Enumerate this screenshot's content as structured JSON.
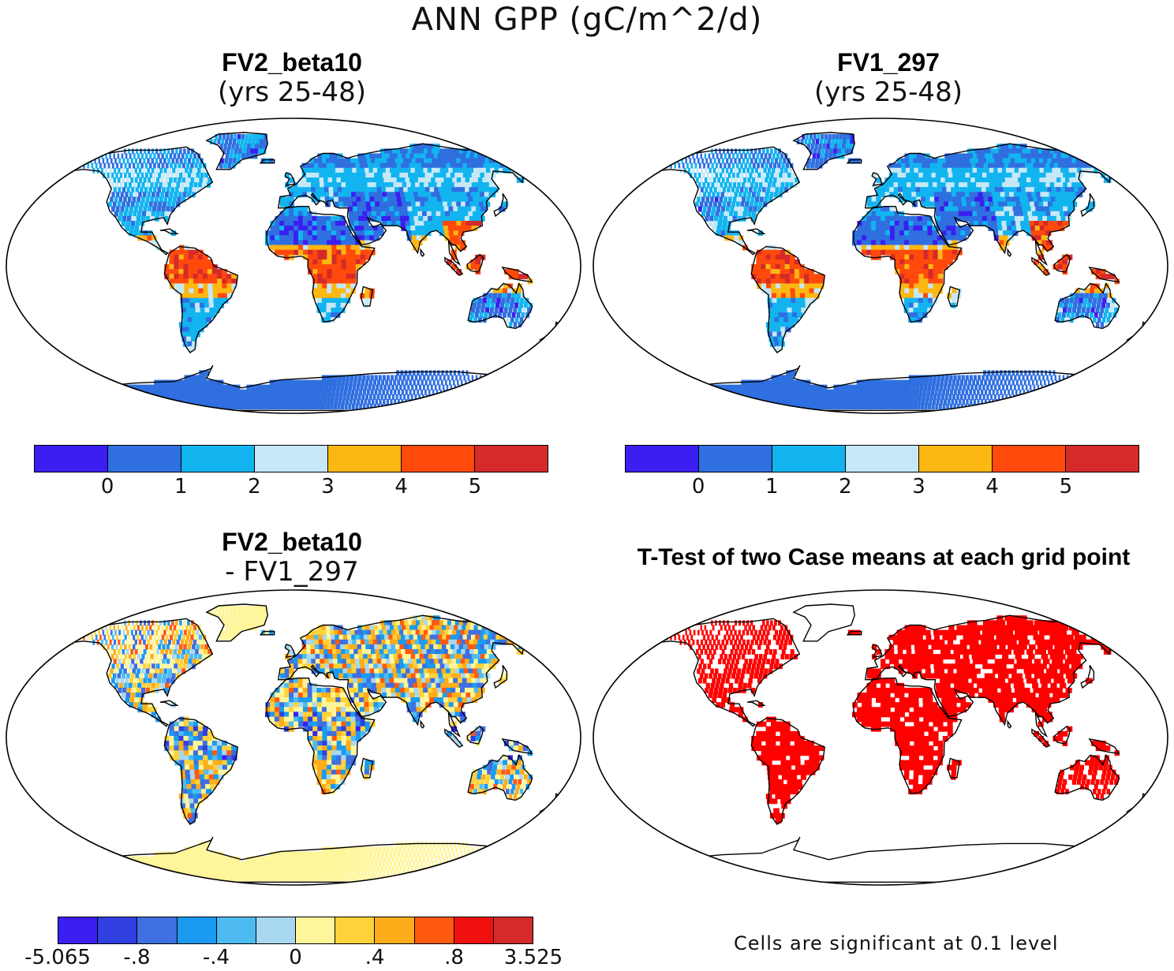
{
  "title": "ANN GPP (gC/m^2/d)",
  "panels": {
    "p1": {
      "title": "FV2_beta10",
      "subtitle": "(yrs 25-48)"
    },
    "p2": {
      "title": "FV1_297",
      "subtitle": "(yrs 25-48)"
    },
    "p3": {
      "title": "FV2_beta10",
      "subtitle": "- FV1_297"
    },
    "p4": {
      "title": "T-Test of two Case means at each grid point",
      "note": "Cells are significant at 0.1 level"
    }
  },
  "colorbars": {
    "abs": {
      "colors": [
        "#3a1ff0",
        "#2f6fe0",
        "#12b4f0",
        "#c6e8f6",
        "#fdb713",
        "#ff4a0c",
        "#d42a2a"
      ],
      "ticks": [
        "0",
        "1",
        "2",
        "3",
        "4",
        "5"
      ]
    },
    "diff": {
      "colors": [
        "#3a1ff0",
        "#2f3fe0",
        "#3f6fe0",
        "#1a9af0",
        "#4ebbf0",
        "#a8d8f0",
        "#fff59a",
        "#fdd23a",
        "#fdac1a",
        "#ff5a10",
        "#f01010",
        "#d42a2a"
      ],
      "ticks": [
        "-5.065",
        "-.8",
        "-.4",
        "0",
        ".4",
        ".8",
        "3.525"
      ]
    }
  },
  "colors": {
    "significant": "#ff0000",
    "land_outline": "#000000",
    "ocean": "#ffffff"
  }
}
